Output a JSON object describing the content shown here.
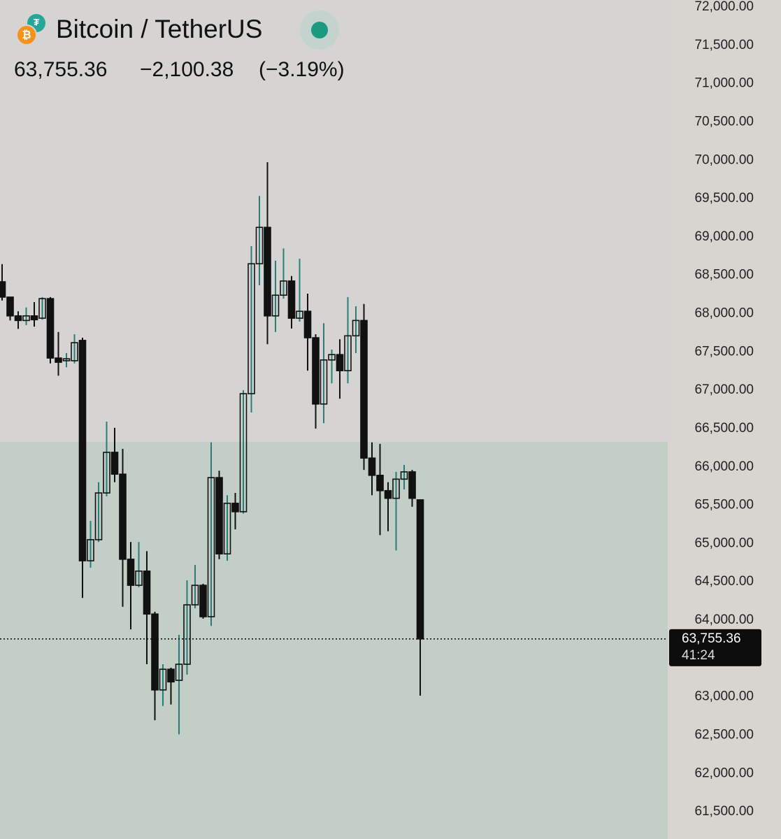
{
  "chart_data": {
    "type": "candlestick",
    "title": "Bitcoin / TetherUS",
    "price": "63,755.36",
    "change": "−2,100.38",
    "change_pct": "(−3.19%)",
    "countdown": "41:24",
    "last_price": {
      "value": 63755.36,
      "label": "63,755.36"
    },
    "ylim": [
      61145,
      72000
    ],
    "yticks": [
      {
        "value": 61500,
        "label": "61,500.00"
      },
      {
        "value": 62000,
        "label": "62,000.00"
      },
      {
        "value": 62500,
        "label": "62,500.00"
      },
      {
        "value": 63000,
        "label": "63,000.00"
      },
      {
        "value": 64000,
        "label": "64,000.00"
      },
      {
        "value": 64500,
        "label": "64,500.00"
      },
      {
        "value": 65000,
        "label": "65,000.00"
      },
      {
        "value": 65500,
        "label": "65,500.00"
      },
      {
        "value": 66000,
        "label": "66,000.00"
      },
      {
        "value": 66500,
        "label": "66,500.00"
      },
      {
        "value": 67000,
        "label": "67,000.00"
      },
      {
        "value": 67500,
        "label": "67,500.00"
      },
      {
        "value": 68000,
        "label": "68,000.00"
      },
      {
        "value": 68500,
        "label": "68,500.00"
      },
      {
        "value": 69000,
        "label": "69,000.00"
      },
      {
        "value": 69500,
        "label": "69,500.00"
      },
      {
        "value": 70000,
        "label": "70,000.00"
      },
      {
        "value": 70500,
        "label": "70,500.00"
      },
      {
        "value": 71000,
        "label": "71,000.00"
      },
      {
        "value": 71500,
        "label": "71,500.00"
      },
      {
        "value": 72000,
        "label": "72,000.00"
      }
    ],
    "zone": [
      61145,
      66325
    ],
    "zone_color": "#c2cec6",
    "up_wick_color": "#2b7c76",
    "down_color": "#111111",
    "open": [
      68415,
      68215,
      67970,
      67910,
      67970,
      67940,
      68195,
      67420,
      67385,
      67385,
      67650,
      64775,
      65050,
      65660,
      66190,
      65905,
      64795,
      64455,
      64640,
      64080,
      63090,
      63360,
      63215,
      63425,
      64200,
      64455,
      64045,
      65860,
      64865,
      65525,
      65415,
      66955,
      68650,
      69125,
      67970,
      68240,
      68425,
      67940,
      68030,
      67685,
      66820,
      67395,
      67465,
      67255,
      67710,
      67910,
      66115,
      65890,
      65690,
      65590,
      65840,
      65935,
      65570
    ],
    "high": [
      68645,
      68215,
      68030,
      68080,
      68150,
      68215,
      68215,
      67760,
      67485,
      67730,
      67685,
      65295,
      65800,
      66590,
      66510,
      66235,
      65020,
      65020,
      64900,
      64110,
      63425,
      63380,
      63810,
      64520,
      64720,
      64475,
      66320,
      65950,
      65630,
      65660,
      67000,
      68880,
      69535,
      69975,
      68690,
      68850,
      68490,
      68715,
      68260,
      67730,
      67875,
      67530,
      67665,
      68215,
      68095,
      68125,
      66320,
      66300,
      65800,
      65935,
      66025,
      65960,
      65570
    ],
    "low": [
      68170,
      67910,
      67800,
      67850,
      67830,
      67920,
      67350,
      67190,
      67300,
      67350,
      64290,
      64685,
      65020,
      65615,
      65800,
      64175,
      63880,
      64430,
      63425,
      62695,
      62880,
      62900,
      62510,
      63290,
      64155,
      64020,
      63925,
      64795,
      64775,
      65185,
      65390,
      66710,
      68370,
      67600,
      67760,
      68195,
      67805,
      67895,
      67255,
      66500,
      66570,
      67090,
      66890,
      67090,
      67485,
      65960,
      65630,
      65110,
      65160,
      64910,
      65705,
      65480,
      63015
    ],
    "close": [
      68215,
      67970,
      67910,
      67970,
      67920,
      68195,
      67420,
      67365,
      67410,
      67620,
      64775,
      65050,
      65660,
      66190,
      65905,
      64795,
      64455,
      64640,
      64080,
      63090,
      63360,
      63195,
      63425,
      64200,
      64455,
      64045,
      65860,
      64865,
      65525,
      65415,
      66955,
      68650,
      69125,
      67970,
      68240,
      68425,
      67940,
      68030,
      67685,
      66820,
      67395,
      67465,
      67255,
      67710,
      67910,
      66115,
      65890,
      65690,
      65590,
      65840,
      65935,
      65590,
      63755.36
    ]
  }
}
